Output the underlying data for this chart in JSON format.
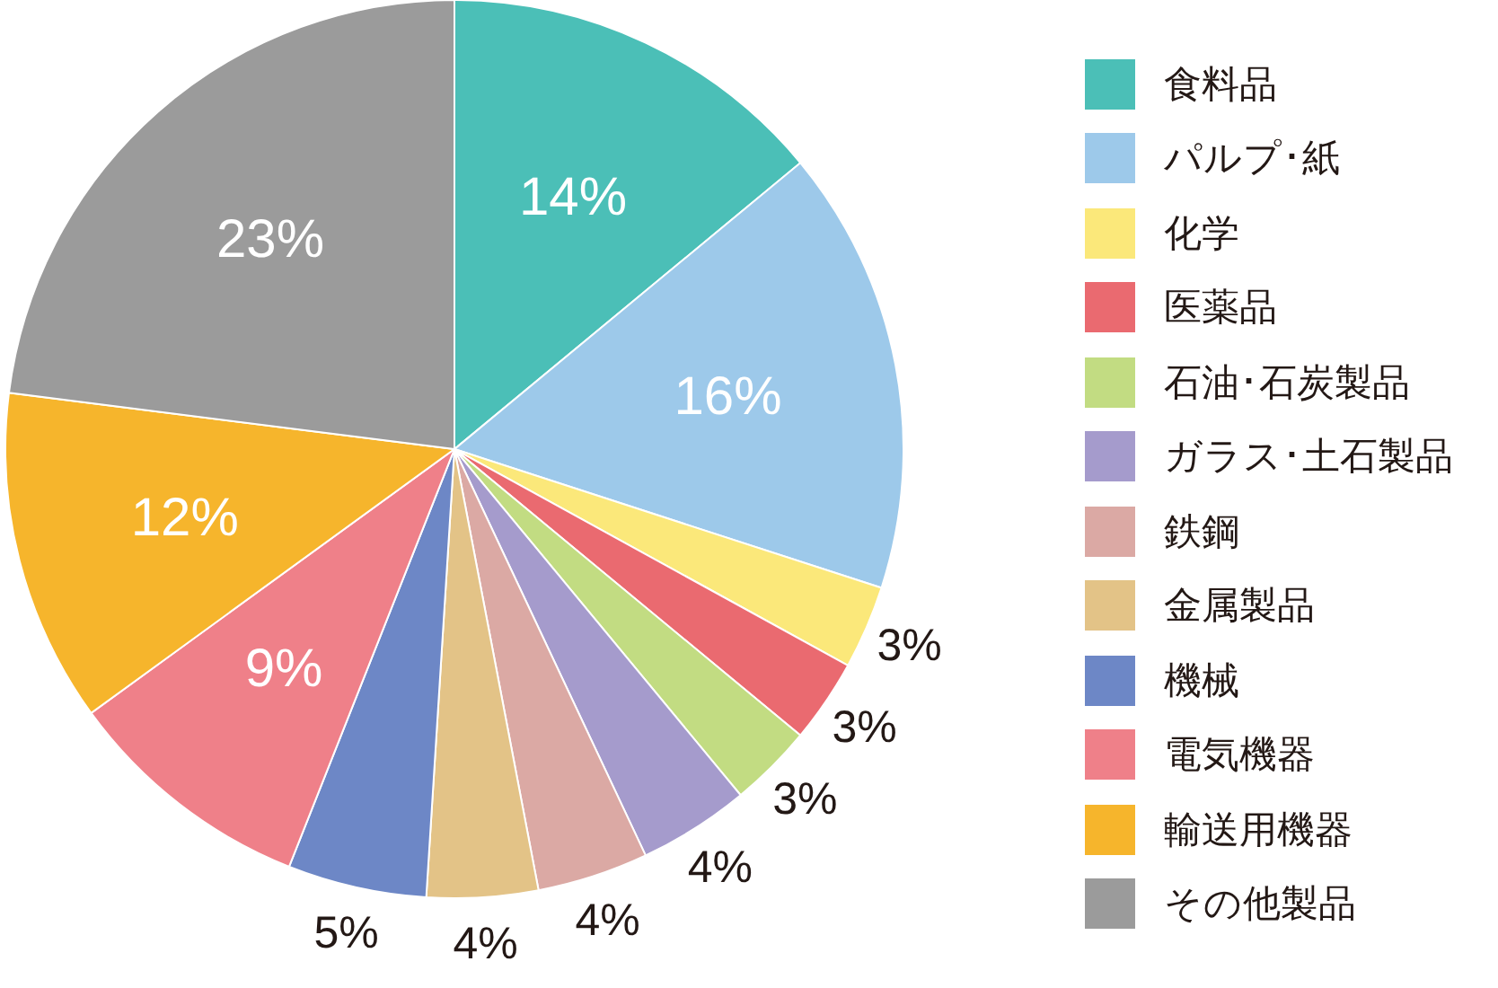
{
  "chart_data": {
    "type": "pie",
    "categories": [
      "食料品",
      "パルプ･紙",
      "化学",
      "医薬品",
      "石油･石炭製品",
      "ガラス･土石製品",
      "鉄鋼",
      "金属製品",
      "機械",
      "電気機器",
      "輸送用機器",
      "その他製品"
    ],
    "values": [
      14,
      16,
      3,
      3,
      3,
      4,
      4,
      4,
      5,
      9,
      12,
      23
    ],
    "value_labels": [
      "14%",
      "16%",
      "3%",
      "3%",
      "3%",
      "4%",
      "4%",
      "4%",
      "5%",
      "9%",
      "12%",
      "23%"
    ],
    "colors": [
      "#4bbfb7",
      "#9dc9ea",
      "#fbe87a",
      "#ea6a70",
      "#c2dc82",
      "#a59bcc",
      "#dba9a4",
      "#e3c387",
      "#6d87c6",
      "#ef8089",
      "#f6b52c",
      "#9b9b9b"
    ],
    "legend": "right"
  }
}
